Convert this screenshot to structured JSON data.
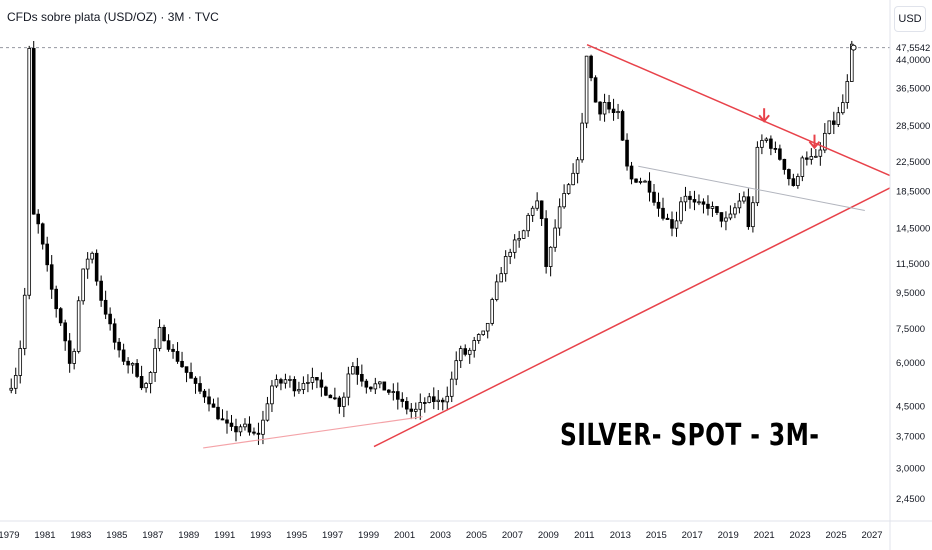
{
  "chart_data": {
    "type": "candlestick",
    "title": "CFDs sobre plata (USD/OZ) · 3M · TVC",
    "currency": "USD",
    "annotation": "SILVER- SPOT - 3M-",
    "y_scale": "log",
    "ylim": [
      2.2,
      50
    ],
    "xlim": [
      1978.5,
      2028
    ],
    "x_ticks": [
      "1979",
      "1981",
      "1983",
      "1985",
      "1987",
      "1989",
      "1991",
      "1993",
      "1995",
      "1997",
      "1999",
      "2001",
      "2003",
      "2005",
      "2007",
      "2009",
      "2011",
      "2013",
      "2015",
      "2017",
      "2019",
      "2021",
      "2023",
      "2025",
      "2027"
    ],
    "y_ticks": [
      "2,4500",
      "3,0000",
      "3,7000",
      "4,5000",
      "6,0000",
      "7,5000",
      "9,5000",
      "11,5000",
      "14,5000",
      "18,5000",
      "22,5000",
      "28,5000",
      "36,5000",
      "44,0000"
    ],
    "last_price_label": "47,5542",
    "reference_price": 47.55,
    "colors": {
      "up": "#ffffff",
      "down": "#000000",
      "trendline": "#e8424a",
      "trendline_light": "#f4a3a8",
      "channel": "#b2b5be",
      "grid_dashed": "#9598a1"
    },
    "price_path": [
      [
        1979.0,
        5.0
      ],
      [
        1979.5,
        5.8
      ],
      [
        1979.8,
        8.0
      ],
      [
        1980.0,
        12.0
      ],
      [
        1980.12,
        48.0
      ],
      [
        1980.3,
        16.0
      ],
      [
        1980.6,
        15.0
      ],
      [
        1981.0,
        12.0
      ],
      [
        1981.5,
        9.0
      ],
      [
        1982.0,
        7.5
      ],
      [
        1982.5,
        5.5
      ],
      [
        1982.8,
        8.5
      ],
      [
        1983.2,
        11.5
      ],
      [
        1983.6,
        12.5
      ],
      [
        1984.0,
        9.5
      ],
      [
        1984.5,
        8.0
      ],
      [
        1985.0,
        6.5
      ],
      [
        1985.5,
        6.0
      ],
      [
        1986.0,
        5.8
      ],
      [
        1986.5,
        5.0
      ],
      [
        1987.0,
        5.8
      ],
      [
        1987.3,
        7.5
      ],
      [
        1987.7,
        7.0
      ],
      [
        1988.0,
        6.5
      ],
      [
        1988.5,
        6.0
      ],
      [
        1989.0,
        5.5
      ],
      [
        1989.5,
        5.0
      ],
      [
        1990.0,
        4.8
      ],
      [
        1990.5,
        4.3
      ],
      [
        1991.0,
        4.0
      ],
      [
        1991.5,
        3.8
      ],
      [
        1992.0,
        4.0
      ],
      [
        1992.5,
        3.7
      ],
      [
        1993.0,
        3.8
      ],
      [
        1993.3,
        4.5
      ],
      [
        1993.7,
        5.3
      ],
      [
        1994.0,
        5.2
      ],
      [
        1994.5,
        5.4
      ],
      [
        1995.0,
        5.0
      ],
      [
        1995.5,
        5.4
      ],
      [
        1996.0,
        5.3
      ],
      [
        1996.5,
        5.0
      ],
      [
        1997.0,
        4.8
      ],
      [
        1997.5,
        4.5
      ],
      [
        1998.0,
        6.0
      ],
      [
        1998.5,
        5.5
      ],
      [
        1999.0,
        5.1
      ],
      [
        1999.5,
        5.2
      ],
      [
        2000.0,
        5.0
      ],
      [
        2000.5,
        4.8
      ],
      [
        2001.0,
        4.5
      ],
      [
        2001.5,
        4.3
      ],
      [
        2002.0,
        4.6
      ],
      [
        2002.5,
        4.7
      ],
      [
        2003.0,
        4.6
      ],
      [
        2003.5,
        5.0
      ],
      [
        2004.0,
        6.5
      ],
      [
        2004.5,
        6.3
      ],
      [
        2005.0,
        7.0
      ],
      [
        2005.5,
        7.3
      ],
      [
        2006.0,
        9.5
      ],
      [
        2006.5,
        11.5
      ],
      [
        2007.0,
        13.0
      ],
      [
        2007.5,
        13.5
      ],
      [
        2008.0,
        16.5
      ],
      [
        2008.5,
        17.5
      ],
      [
        2008.9,
        11.0
      ],
      [
        2009.3,
        14.0
      ],
      [
        2009.7,
        17.0
      ],
      [
        2010.0,
        18.5
      ],
      [
        2010.5,
        21.0
      ],
      [
        2010.9,
        29.0
      ],
      [
        2011.15,
        48.0
      ],
      [
        2011.4,
        38.0
      ],
      [
        2011.8,
        30.0
      ],
      [
        2012.0,
        34.0
      ],
      [
        2012.5,
        31.0
      ],
      [
        2012.9,
        30.5
      ],
      [
        2013.2,
        24.0
      ],
      [
        2013.5,
        20.0
      ],
      [
        2014.0,
        20.0
      ],
      [
        2014.5,
        19.5
      ],
      [
        2015.0,
        17.0
      ],
      [
        2015.5,
        15.5
      ],
      [
        2016.0,
        14.5
      ],
      [
        2016.5,
        18.5
      ],
      [
        2017.0,
        17.0
      ],
      [
        2017.5,
        16.8
      ],
      [
        2018.0,
        16.8
      ],
      [
        2018.5,
        15.5
      ],
      [
        2019.0,
        15.2
      ],
      [
        2019.5,
        17.0
      ],
      [
        2019.9,
        18.0
      ],
      [
        2020.2,
        13.5
      ],
      [
        2020.6,
        24.0
      ],
      [
        2021.0,
        26.5
      ],
      [
        2021.5,
        24.5
      ],
      [
        2022.0,
        22.5
      ],
      [
        2022.5,
        19.5
      ],
      [
        2022.8,
        19.0
      ],
      [
        2023.1,
        23.5
      ],
      [
        2023.5,
        23.0
      ],
      [
        2024.0,
        22.8
      ],
      [
        2024.5,
        28.5
      ],
      [
        2024.9,
        29.0
      ],
      [
        2025.3,
        32.0
      ],
      [
        2025.6,
        36.5
      ],
      [
        2025.85,
        47.55
      ]
    ],
    "trendlines": [
      {
        "from": [
          2011.15,
          48.5
        ],
        "to": [
          2028.0,
          20.5
        ],
        "style": "red"
      },
      {
        "from": [
          1999.3,
          3.45
        ],
        "to": [
          2028.0,
          18.9
        ],
        "style": "red"
      },
      {
        "from": [
          1989.8,
          3.42
        ],
        "to": [
          2002.0,
          4.2
        ],
        "style": "light"
      },
      {
        "from": [
          2014.0,
          21.8
        ],
        "to": [
          2026.6,
          16.3
        ],
        "style": "channel"
      }
    ],
    "markers": [
      {
        "type": "arrow-down",
        "x": 2021.0,
        "y": 29.5
      },
      {
        "type": "arrow-down",
        "x": 2023.8,
        "y": 24.8
      }
    ]
  }
}
